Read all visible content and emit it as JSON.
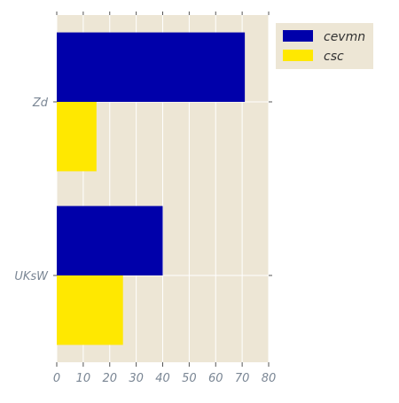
{
  "chart_data": {
    "type": "bar",
    "orientation": "horizontal",
    "categories": [
      "Zd",
      "UKsW"
    ],
    "series": [
      {
        "name": "cevmn",
        "values": [
          71,
          40
        ],
        "color": "#0000aa"
      },
      {
        "name": "csc",
        "values": [
          15,
          25
        ],
        "color": "#ffe800"
      }
    ],
    "xlim": [
      0,
      80
    ],
    "xticks": [
      "0",
      "10",
      "20",
      "30",
      "40",
      "50",
      "60",
      "70",
      "80"
    ],
    "grid": true,
    "legend_position": "outside-top-right",
    "colors": {
      "plot_background": "#ede6d5",
      "grid": "#ffffff",
      "tick_label": "#7a8694",
      "legend_text": "#333333"
    }
  }
}
